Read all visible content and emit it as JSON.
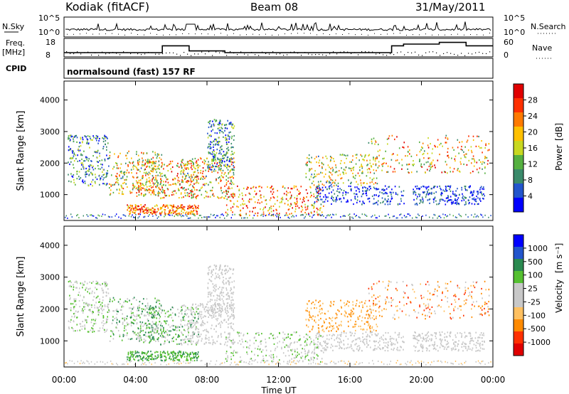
{
  "header": {
    "station": "Kodiak (fitACF)",
    "beam": "Beam 08",
    "date": "31/May/2011"
  },
  "top_panels": {
    "nsky_label": "N.Sky",
    "nsearch_label": "N.Search",
    "nsky_ticks": [
      "10^5",
      "10^0"
    ],
    "nsearch_ticks": [
      "10^5",
      "10^0"
    ],
    "freq_label": "Freq.",
    "freq_unit": "[MHz]",
    "freq_ticks": [
      "18",
      "8"
    ],
    "nave_label": "Nave",
    "nave_ticks": [
      "60",
      "0"
    ],
    "cpid_label": "CPID",
    "cpid_text": "normalsound (fast) 157 RF"
  },
  "colors": {
    "power_scale": [
      "#0000ff",
      "#2255cc",
      "#3a8a6a",
      "#55b040",
      "#c8d820",
      "#ffc000",
      "#ff7a00",
      "#ff3000",
      "#e00000"
    ],
    "velocity_scale": [
      "#e00000",
      "#ff3000",
      "#ff8a00",
      "#ffc060",
      "#c8c8c8",
      "#c8c8c8",
      "#55c030",
      "#2a8a50",
      "#2255cc",
      "#0000ff"
    ],
    "frame": "#000000"
  },
  "chart_data": [
    {
      "type": "line",
      "title": "N.Sky",
      "x_range": [
        "00:00",
        "24:00"
      ],
      "ylim_log10": [
        0,
        5
      ],
      "series": [
        {
          "name": "N.Sky"
        },
        {
          "name": "N.Search"
        }
      ]
    },
    {
      "type": "line",
      "title": "Freq.",
      "ylabel": "[MHz]",
      "ylim": [
        8,
        18
      ],
      "series": [
        {
          "name": "Freq.",
          "x": [
            "00:00",
            "05:30",
            "05:30",
            "07:00",
            "07:00",
            "09:00",
            "09:00",
            "18:20",
            "18:20",
            "19:00",
            "19:00",
            "21:00",
            "21:00",
            "22:30",
            "22:30",
            "24:00"
          ],
          "values": [
            10.5,
            10.5,
            14.5,
            14.5,
            11.5,
            11.5,
            10.5,
            10.5,
            14.5,
            14.5,
            15.5,
            15.5,
            16.5,
            16.5,
            14.5,
            14.5
          ]
        },
        {
          "name": "Nave",
          "ylim": [
            0,
            60
          ]
        }
      ]
    },
    {
      "type": "heatmap",
      "xlabel": "Time UT",
      "ylabel": "Slant Range [km]",
      "x_ticks": [
        "00:00",
        "04:00",
        "08:00",
        "12:00",
        "16:00",
        "20:00",
        "00:00"
      ],
      "y_ticks": [
        1000,
        2000,
        3000,
        4000
      ],
      "ylim": [
        180,
        4600
      ],
      "colorbar": {
        "label": "Power [dB]",
        "ticks": [
          4,
          8,
          12,
          16,
          20,
          24,
          28
        ]
      }
    },
    {
      "type": "heatmap",
      "xlabel": "Time UT",
      "ylabel": "Slant Range [km]",
      "x_ticks": [
        "00:00",
        "04:00",
        "08:00",
        "12:00",
        "16:00",
        "20:00",
        "00:00"
      ],
      "y_ticks": [
        1000,
        2000,
        3000,
        4000
      ],
      "ylim": [
        180,
        4600
      ],
      "colorbar": {
        "label": "Velocity",
        "unit": "[m s⁻¹]",
        "ticks": [
          1000,
          500,
          100,
          25,
          -25,
          -100,
          -500,
          -1000
        ]
      }
    }
  ],
  "axis": {
    "xlabel": "Time UT",
    "ylabel": "Slant Range [km]",
    "x_ticks": [
      "00:00",
      "04:00",
      "08:00",
      "12:00",
      "16:00",
      "20:00",
      "00:00"
    ],
    "y_ticks": [
      "1000",
      "2000",
      "3000",
      "4000"
    ]
  },
  "colorbars": {
    "power_label": "Power",
    "power_unit": "[dB]",
    "power_ticks": [
      "28",
      "24",
      "20",
      "16",
      "12",
      "8",
      "4"
    ],
    "velocity_label": "Velocity",
    "velocity_unit": "[m s⁻¹]",
    "velocity_ticks": [
      "1000",
      "500",
      "100",
      "25",
      "-25",
      "-100",
      "-500",
      "-1000"
    ]
  }
}
